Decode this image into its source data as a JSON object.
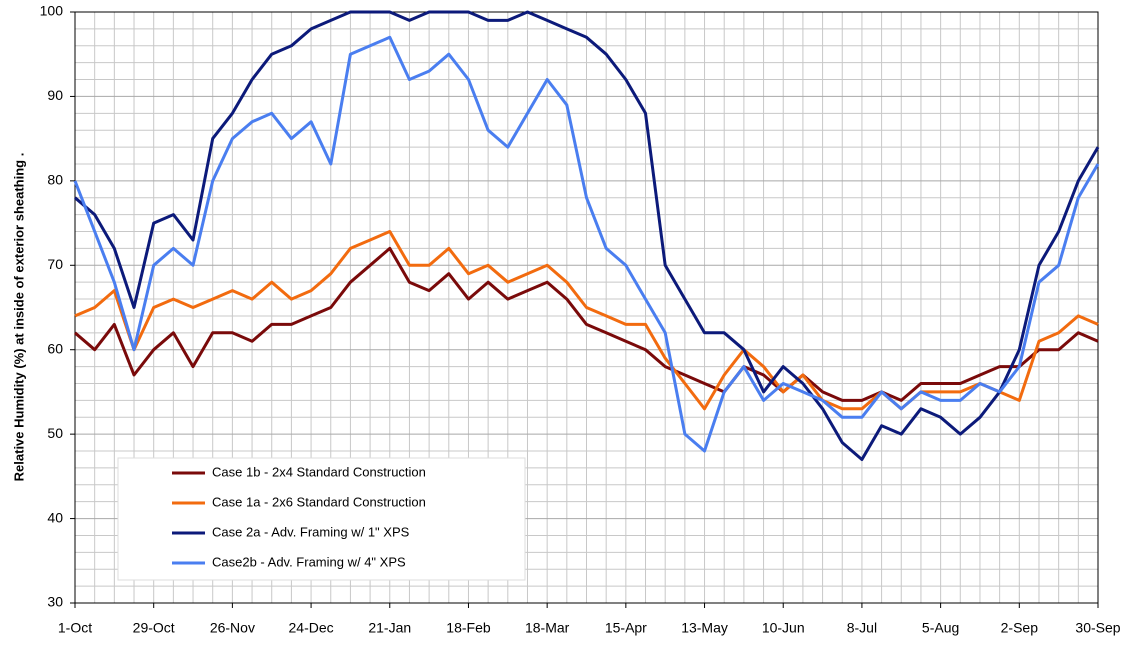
{
  "chart_data": {
    "type": "line",
    "y_label": "Relative Humidity (%) at inside of exterior sheathing .",
    "x": [
      "1-Oct",
      null,
      null,
      null,
      "29-Oct",
      null,
      null,
      null,
      "26-Nov",
      null,
      null,
      null,
      "24-Dec",
      null,
      null,
      null,
      "21-Jan",
      null,
      null,
      null,
      "18-Feb",
      null,
      null,
      null,
      "18-Mar",
      null,
      null,
      null,
      "15-Apr",
      null,
      null,
      null,
      "13-May",
      null,
      null,
      null,
      "10-Jun",
      null,
      null,
      null,
      "8-Jul",
      null,
      null,
      null,
      "5-Aug",
      null,
      null,
      null,
      "2-Sep",
      null,
      null,
      null,
      "30-Sep"
    ],
    "ylim": [
      30,
      100
    ],
    "yticks": [
      30,
      40,
      50,
      60,
      70,
      80,
      90,
      100
    ],
    "grid": true,
    "series": [
      {
        "name": "Case 1b - 2x4 Standard Construction",
        "color": "#7a0a0a",
        "values": [
          62,
          60,
          63,
          57,
          60,
          62,
          58,
          62,
          62,
          61,
          63,
          63,
          64,
          65,
          68,
          70,
          72,
          68,
          67,
          69,
          66,
          68,
          66,
          67,
          68,
          66,
          63,
          62,
          61,
          60,
          58,
          57,
          56,
          55,
          58,
          57,
          55,
          57,
          55,
          54,
          54,
          55,
          54,
          56,
          56,
          56,
          57,
          58,
          58,
          60,
          60,
          62,
          61
        ]
      },
      {
        "name": "Case 1a - 2x6 Standard Construction",
        "color": "#f26b0f",
        "values": [
          64,
          65,
          67,
          60,
          65,
          66,
          65,
          66,
          67,
          66,
          68,
          66,
          67,
          69,
          72,
          73,
          74,
          70,
          70,
          72,
          69,
          70,
          68,
          69,
          70,
          68,
          65,
          64,
          63,
          63,
          59,
          56,
          53,
          57,
          60,
          58,
          55,
          57,
          54,
          53,
          53,
          55,
          53,
          55,
          55,
          55,
          56,
          55,
          54,
          61,
          62,
          64,
          63
        ]
      },
      {
        "name": "Case 2a - Adv. Framing w/ 1\" XPS",
        "color": "#0c1a7a",
        "values": [
          78,
          76,
          72,
          65,
          75,
          76,
          73,
          85,
          88,
          92,
          95,
          96,
          98,
          99,
          100,
          100,
          100,
          99,
          100,
          100,
          100,
          99,
          99,
          100,
          99,
          98,
          97,
          95,
          92,
          88,
          70,
          66,
          62,
          62,
          60,
          55,
          58,
          56,
          53,
          49,
          47,
          51,
          50,
          53,
          52,
          50,
          52,
          55,
          60,
          70,
          74,
          80,
          84
        ]
      },
      {
        "name": "Case2b - Adv. Framing w/ 4\" XPS",
        "color": "#4a7ef0",
        "values": [
          80,
          74,
          68,
          60,
          70,
          72,
          70,
          80,
          85,
          87,
          88,
          85,
          87,
          82,
          95,
          96,
          97,
          92,
          93,
          95,
          92,
          86,
          84,
          88,
          92,
          89,
          78,
          72,
          70,
          66,
          62,
          50,
          48,
          55,
          58,
          54,
          56,
          55,
          54,
          52,
          52,
          55,
          53,
          55,
          54,
          54,
          56,
          55,
          58,
          68,
          70,
          78,
          82
        ]
      }
    ]
  }
}
